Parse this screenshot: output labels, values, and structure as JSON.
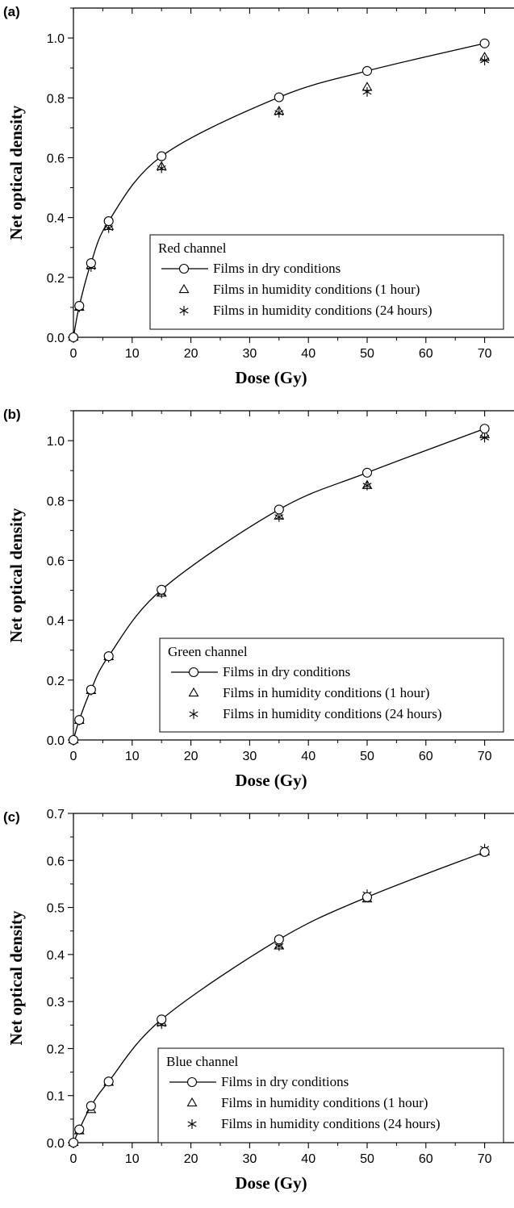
{
  "chart_data": [
    {
      "type": "scatter",
      "panel_label": "(a)",
      "xlabel": "Dose (Gy)",
      "ylabel": "Net optical density",
      "xlim": [
        0,
        75
      ],
      "ylim": [
        0,
        1.1
      ],
      "xticks": [
        0,
        10,
        20,
        30,
        40,
        50,
        60,
        70
      ],
      "yticks": [
        0.0,
        0.2,
        0.4,
        0.6,
        0.8,
        1.0
      ],
      "ytick_labels": [
        "0.0",
        "0.2",
        "0.4",
        "0.6",
        "0.8",
        "1.0"
      ],
      "legend_title": "Red channel",
      "legend_position": "lower-right",
      "x": [
        0,
        1,
        3,
        6,
        15,
        35,
        50,
        70
      ],
      "series": [
        {
          "name": "Films in dry conditions",
          "marker": "circle",
          "line": true,
          "values": [
            0.0,
            0.105,
            0.248,
            0.388,
            0.605,
            0.802,
            0.89,
            0.982
          ]
        },
        {
          "name": "Films in humidity conditions (1 hour)",
          "marker": "triangle",
          "line": false,
          "values": [
            0.0,
            0.1,
            0.24,
            0.37,
            0.57,
            0.755,
            0.835,
            0.935
          ]
        },
        {
          "name": "Films in humidity conditions (24 hours)",
          "marker": "asterisk",
          "line": false,
          "values": [
            0.0,
            0.1,
            0.235,
            0.365,
            0.565,
            0.75,
            0.82,
            0.925
          ]
        }
      ]
    },
    {
      "type": "scatter",
      "panel_label": "(b)",
      "xlabel": "Dose (Gy)",
      "ylabel": "Net optical density",
      "xlim": [
        0,
        75
      ],
      "ylim": [
        0,
        1.1
      ],
      "xticks": [
        0,
        10,
        20,
        30,
        40,
        50,
        60,
        70
      ],
      "yticks": [
        0.0,
        0.2,
        0.4,
        0.6,
        0.8,
        1.0
      ],
      "ytick_labels": [
        "0.0",
        "0.2",
        "0.4",
        "0.6",
        "0.8",
        "1.0"
      ],
      "legend_title": "Green channel",
      "legend_position": "lower-right",
      "x": [
        0,
        1,
        3,
        6,
        15,
        35,
        50,
        70
      ],
      "series": [
        {
          "name": "Films in dry conditions",
          "marker": "circle",
          "line": true,
          "values": [
            0.0,
            0.067,
            0.168,
            0.28,
            0.502,
            0.77,
            0.893,
            1.04
          ]
        },
        {
          "name": "Films in humidity conditions (1 hour)",
          "marker": "triangle",
          "line": false,
          "values": [
            0.0,
            0.065,
            0.165,
            0.278,
            0.49,
            0.748,
            0.85,
            1.02
          ]
        },
        {
          "name": "Films in humidity conditions (24 hours)",
          "marker": "asterisk",
          "line": false,
          "values": [
            0.0,
            0.065,
            0.165,
            0.275,
            0.49,
            0.745,
            0.85,
            1.01
          ]
        }
      ]
    },
    {
      "type": "scatter",
      "panel_label": "(c)",
      "xlabel": "Dose (Gy)",
      "ylabel": "Net optical density",
      "xlim": [
        0,
        75
      ],
      "ylim": [
        0,
        0.7
      ],
      "xticks": [
        0,
        10,
        20,
        30,
        40,
        50,
        60,
        70
      ],
      "yticks": [
        0.0,
        0.1,
        0.2,
        0.3,
        0.4,
        0.5,
        0.6,
        0.7
      ],
      "ytick_labels": [
        "0.0",
        "0.1",
        "0.2",
        "0.3",
        "0.4",
        "0.5",
        "0.6",
        "0.7"
      ],
      "legend_title": "Blue channel",
      "legend_position": "lower-right",
      "x": [
        0,
        1,
        3,
        6,
        15,
        35,
        50,
        70
      ],
      "series": [
        {
          "name": "Films in dry conditions",
          "marker": "circle",
          "line": true,
          "values": [
            0.0,
            0.028,
            0.078,
            0.13,
            0.262,
            0.432,
            0.522,
            0.618
          ]
        },
        {
          "name": "Films in humidity conditions (1 hour)",
          "marker": "triangle",
          "line": false,
          "values": [
            0.0,
            0.025,
            0.07,
            0.128,
            0.255,
            0.418,
            0.518,
            0.618
          ]
        },
        {
          "name": "Films in humidity conditions (24 hours)",
          "marker": "asterisk",
          "line": false,
          "values": [
            0.0,
            0.028,
            0.078,
            0.13,
            0.252,
            0.418,
            0.528,
            0.625
          ]
        }
      ]
    }
  ]
}
